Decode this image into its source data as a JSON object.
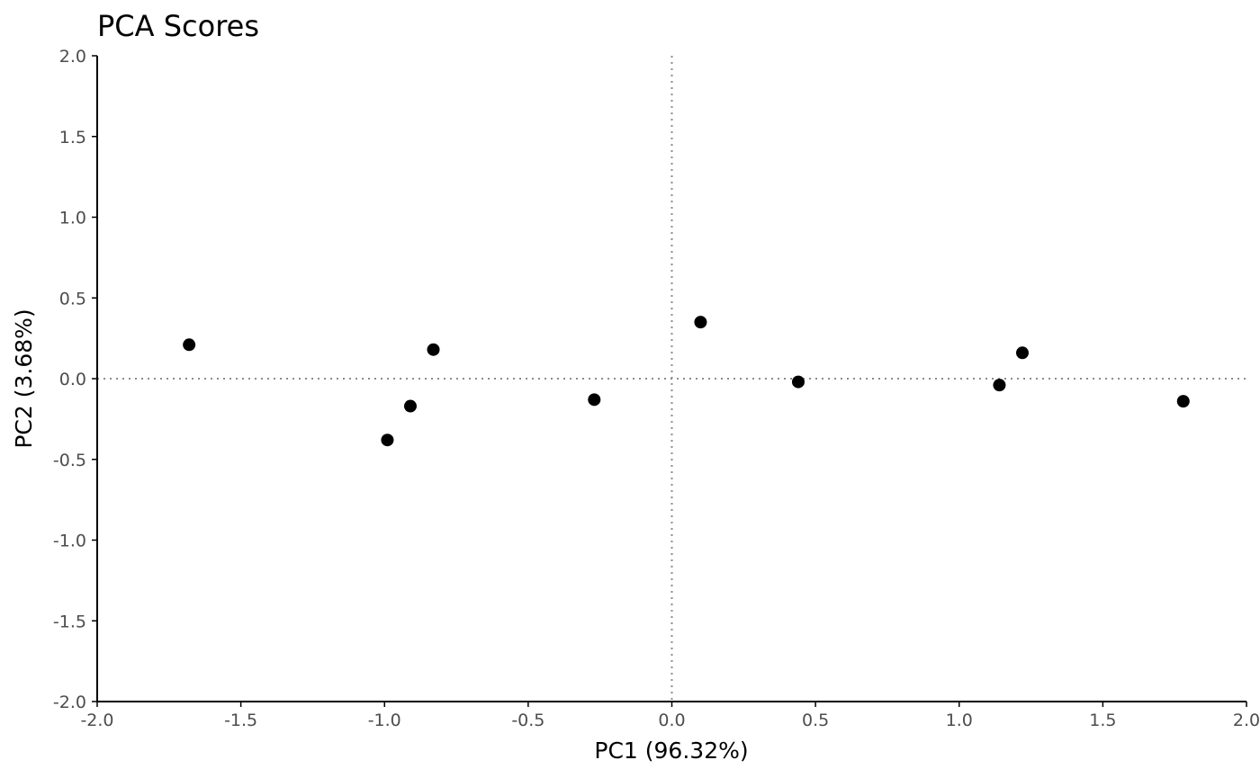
{
  "chart_data": {
    "type": "scatter",
    "title": "PCA Scores",
    "xlabel": "PC1 (96.32%)",
    "ylabel": "PC2 (3.68%)",
    "xlim": [
      -2.0,
      2.0
    ],
    "ylim": [
      -2.0,
      2.0
    ],
    "x_ticks": [
      "-2.0",
      "-1.5",
      "-1.0",
      "-0.5",
      "0.0",
      "0.5",
      "1.0",
      "1.5",
      "2.0"
    ],
    "y_ticks": [
      "-2.0",
      "-1.5",
      "-1.0",
      "-0.5",
      "0.0",
      "0.5",
      "1.0",
      "1.5",
      "2.0"
    ],
    "reference_lines": {
      "x": 0.0,
      "y": 0.0,
      "style": "dotted"
    },
    "grid": false,
    "point_color": "#000000",
    "ref_line_color": "#8c8c8c",
    "points": [
      {
        "x": -1.68,
        "y": 0.21
      },
      {
        "x": -0.99,
        "y": -0.38
      },
      {
        "x": -0.91,
        "y": -0.17
      },
      {
        "x": -0.83,
        "y": 0.18
      },
      {
        "x": -0.27,
        "y": -0.13
      },
      {
        "x": 0.1,
        "y": 0.35
      },
      {
        "x": 0.44,
        "y": -0.02
      },
      {
        "x": 1.14,
        "y": -0.04
      },
      {
        "x": 1.22,
        "y": 0.16
      },
      {
        "x": 1.78,
        "y": -0.14
      }
    ]
  }
}
